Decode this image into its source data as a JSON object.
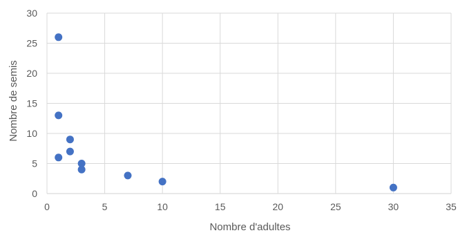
{
  "chart_data": {
    "type": "scatter",
    "title": "",
    "xlabel": "Nombre d'adultes",
    "ylabel": "Nombre de semis",
    "xlim": [
      0,
      35
    ],
    "ylim": [
      0,
      30
    ],
    "x_ticks": [
      0,
      5,
      10,
      15,
      20,
      25,
      30,
      35
    ],
    "y_ticks": [
      0,
      5,
      10,
      15,
      20,
      25,
      30
    ],
    "grid": true,
    "legend": "none",
    "colors": {
      "marker": "#4472C4",
      "grid": "#d9d9d9",
      "text": "#595959"
    },
    "series": [
      {
        "points": [
          {
            "x": 1,
            "y": 26
          },
          {
            "x": 1,
            "y": 13
          },
          {
            "x": 1,
            "y": 6
          },
          {
            "x": 2,
            "y": 9
          },
          {
            "x": 2,
            "y": 7
          },
          {
            "x": 3,
            "y": 5
          },
          {
            "x": 3,
            "y": 4
          },
          {
            "x": 7,
            "y": 3
          },
          {
            "x": 10,
            "y": 2
          },
          {
            "x": 30,
            "y": 1
          }
        ]
      }
    ]
  }
}
